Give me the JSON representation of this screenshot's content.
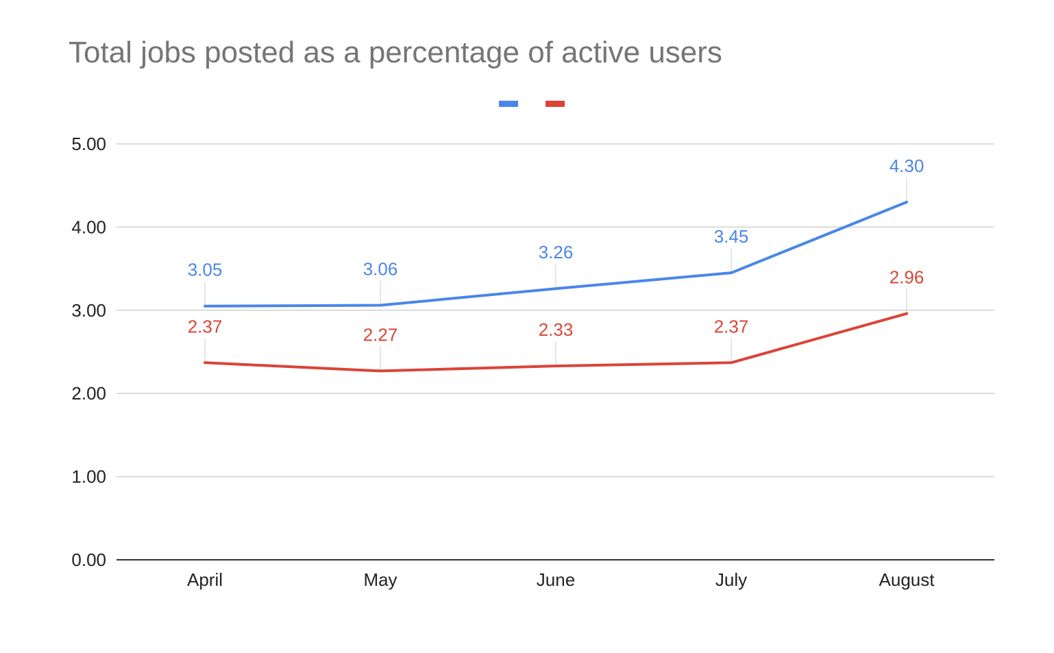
{
  "chart_data": {
    "type": "line",
    "title": "Total jobs posted as a percentage of active users",
    "xlabel": "",
    "ylabel": "",
    "categories": [
      "April",
      "May",
      "June",
      "July",
      "August"
    ],
    "ylim": [
      0,
      5
    ],
    "yticks": [
      "0.00",
      "1.00",
      "2.00",
      "3.00",
      "4.00",
      "5.00"
    ],
    "grid": true,
    "legend": "top-center",
    "series": [
      {
        "color": "#4a86e8",
        "values": [
          3.05,
          3.06,
          3.26,
          3.45,
          4.3
        ],
        "labels": [
          "3.05",
          "3.06",
          "3.26",
          "3.45",
          "4.30"
        ]
      },
      {
        "color": "#db4437",
        "values": [
          2.37,
          2.27,
          2.33,
          2.37,
          2.96
        ],
        "labels": [
          "2.37",
          "2.27",
          "2.33",
          "2.37",
          "2.96"
        ]
      }
    ]
  }
}
